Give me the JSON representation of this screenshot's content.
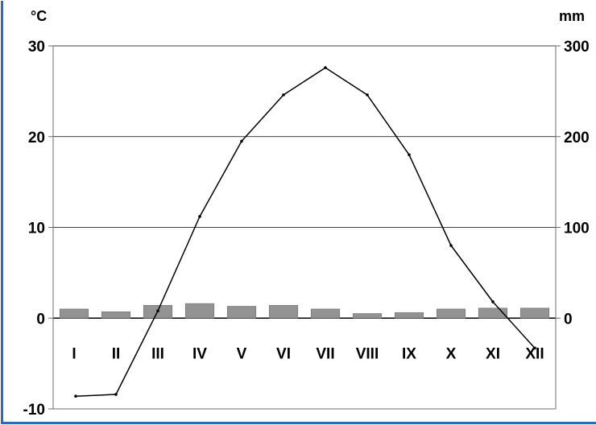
{
  "chart_data": {
    "type": "bar",
    "title": "",
    "left_unit": "°C",
    "right_unit": "mm",
    "categories": [
      "I",
      "II",
      "III",
      "IV",
      "V",
      "VI",
      "VII",
      "VIII",
      "IX",
      "X",
      "XI",
      "XII"
    ],
    "left_axis": {
      "ticks": [
        "30",
        "20",
        "10",
        "0",
        "-10"
      ],
      "range": [
        -10,
        30
      ]
    },
    "right_axis": {
      "ticks": [
        "300",
        "200",
        "100",
        "0"
      ],
      "range": [
        -100,
        300
      ],
      "clipped": true
    },
    "series": [
      {
        "kind": "bar",
        "axis": "right",
        "values": [
          10,
          7,
          14,
          16,
          13,
          14,
          10,
          5,
          6,
          10,
          11,
          11
        ]
      },
      {
        "kind": "line",
        "axis": "left",
        "values": [
          -8.6,
          -8.4,
          0.8,
          11.2,
          19.5,
          24.6,
          27.6,
          24.6,
          18.0,
          8.0,
          1.8,
          -3.3
        ]
      }
    ],
    "grid": true,
    "colors": {
      "bar": "#939393",
      "bar_edge": "#7a7a7a",
      "line": "#000000",
      "grid": "#000000",
      "frame": "#2e6bb3"
    }
  }
}
